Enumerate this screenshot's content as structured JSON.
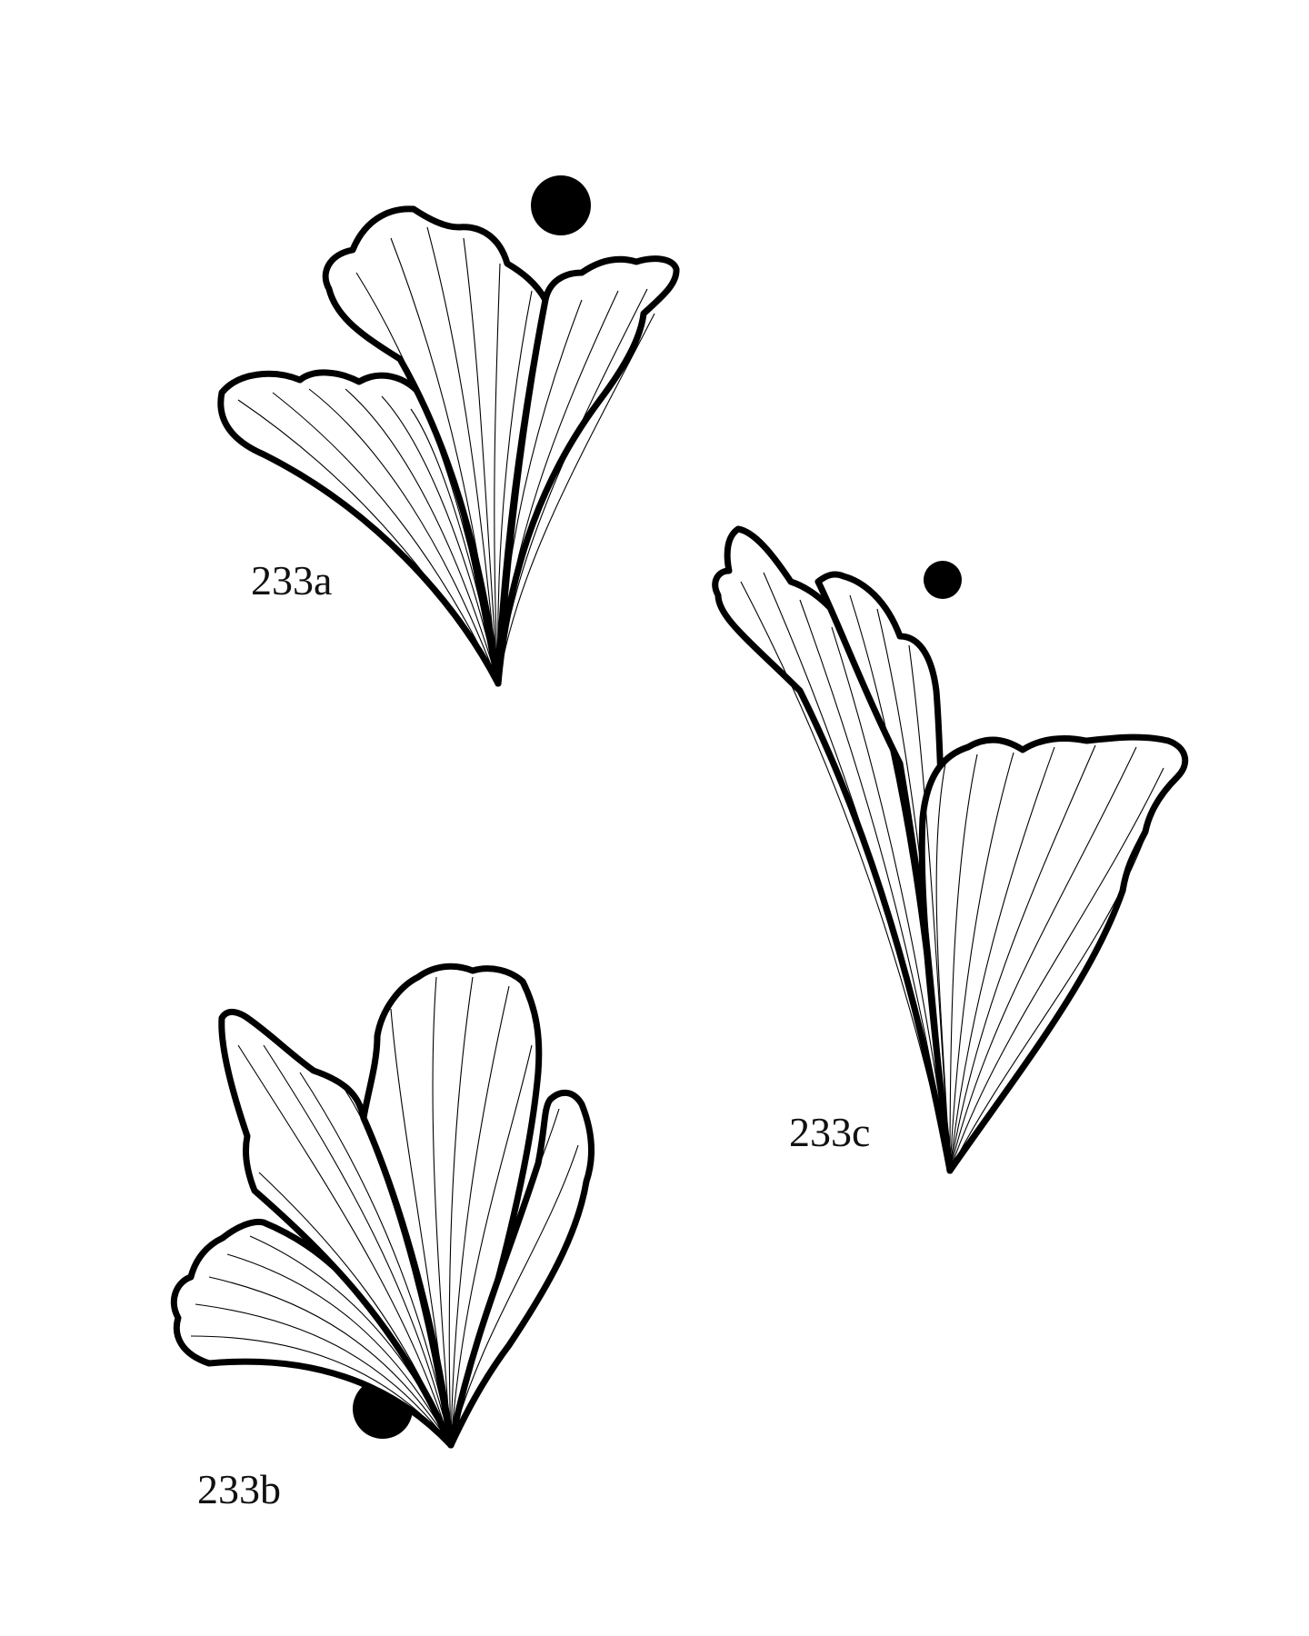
{
  "page": {
    "background": "#ffffff",
    "ink": "#000000"
  },
  "designs": [
    {
      "id": "a",
      "label": "233a"
    },
    {
      "id": "b",
      "label": "233b"
    },
    {
      "id": "c",
      "label": "233c"
    }
  ]
}
